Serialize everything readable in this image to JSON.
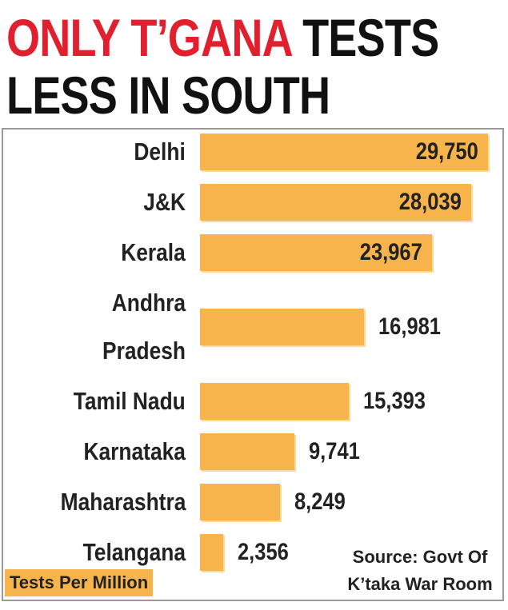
{
  "chart_data": {
    "type": "bar",
    "orientation": "horizontal",
    "title_highlight": "ONLY T’GANA",
    "title_line1": "TESTS",
    "title_line2": "LESS IN SOUTH",
    "categories": [
      "Delhi",
      "J&K",
      "Kerala",
      "Andhra Pradesh",
      "Tamil Nadu",
      "Karnataka",
      "Maharashtra",
      "Telangana"
    ],
    "values": [
      29750,
      28039,
      23967,
      16981,
      15393,
      9741,
      8249,
      2356
    ],
    "value_labels": [
      "29,750",
      "28,039",
      "23,967",
      "16,981",
      "15,393",
      "9,741",
      "8,249",
      "2,356"
    ],
    "color": "#f8b44c",
    "unit_label": "Tests Per Million",
    "source": "Source: Govt Of K’taka War Room"
  }
}
